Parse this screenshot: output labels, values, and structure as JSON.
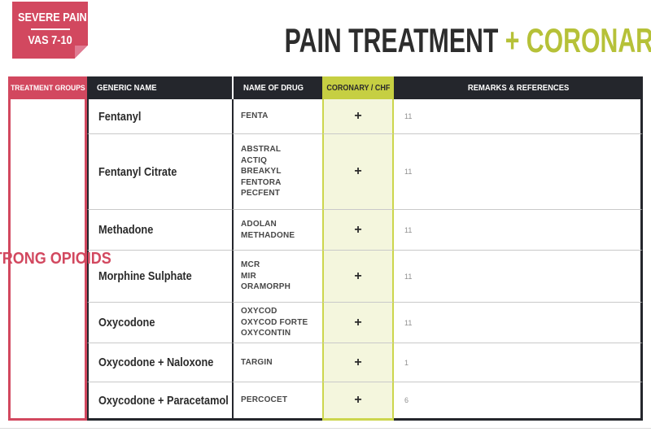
{
  "badge": {
    "line1": "SEVERE PAIN",
    "line2": "VAS 7-10"
  },
  "title": {
    "dark": "PAIN TREATMENT",
    "accent": "+ CORONARY/CHF"
  },
  "table": {
    "headers": [
      "TREATMENT GROUPS",
      "GENERIC NAME",
      "NAME OF DRUG",
      "CORONARY / CHF",
      "REMARKS & REFERENCES"
    ],
    "group_label": "STRONG OPIOIDS",
    "rows": [
      {
        "generic": "Fentanyl",
        "drugs": [
          "FENTA"
        ],
        "coronary": "+",
        "remark": "11"
      },
      {
        "generic": "Fentanyl Citrate",
        "drugs": [
          "ABSTRAL",
          "ACTIQ",
          "BREAKYL",
          "FENTORA",
          "PECFENT"
        ],
        "coronary": "+",
        "remark": "11"
      },
      {
        "generic": "Methadone",
        "drugs": [
          "ADOLAN",
          "METHADONE"
        ],
        "coronary": "+",
        "remark": "11"
      },
      {
        "generic": "Morphine Sulphate",
        "drugs": [
          "MCR",
          "MIR",
          "ORAMORPH"
        ],
        "coronary": "+",
        "remark": "11"
      },
      {
        "generic": "Oxycodone",
        "drugs": [
          "OXYCOD",
          "OXYCOD FORTE",
          "OXYCONTIN"
        ],
        "coronary": "+",
        "remark": "11"
      },
      {
        "generic": "Oxycodone + Naloxone",
        "drugs": [
          "TARGIN"
        ],
        "coronary": "+",
        "remark": "1"
      },
      {
        "generic": "Oxycodone + Paracetamol",
        "drugs": [
          "PERCOCET"
        ],
        "coronary": "+",
        "remark": "6"
      }
    ]
  },
  "colors": {
    "pink": "#d2485f",
    "pink_light": "#e07b92",
    "dark": "#24262c",
    "lime": "#c6cf42",
    "lime_title": "#b6c138",
    "lime_pale": "#f4f6dd",
    "lime_border": "#ccd64d",
    "row_divider": "#c9c9c9"
  }
}
